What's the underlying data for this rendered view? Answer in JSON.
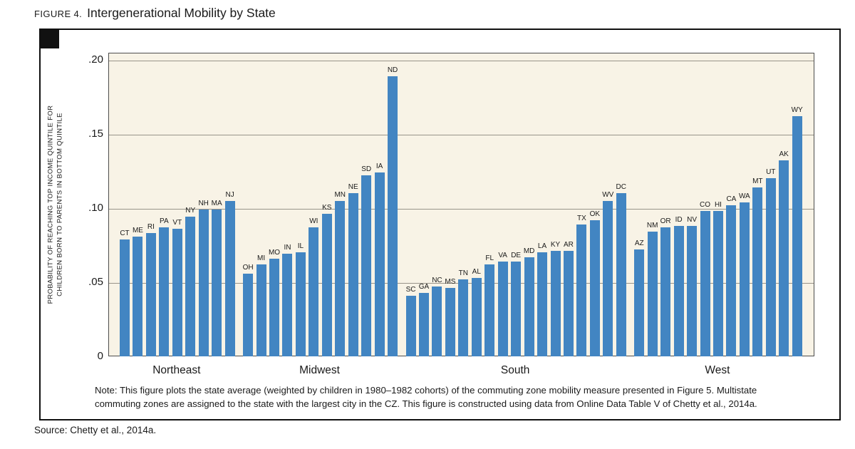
{
  "figure": {
    "label": "FIGURE 4.",
    "title": "Intergenerational Mobility by State"
  },
  "chart_data": {
    "type": "bar",
    "title": "Intergenerational Mobility by State",
    "ylabel_line1": "PROBABILITY OF REACHING TOP INCOME QUINTILE FOR",
    "ylabel_line2": "CHILDREN BORN TO PARENTS IN BOTTOM QUINTILE",
    "ylim": [
      0,
      0.2
    ],
    "grid": true,
    "legend": "none",
    "bar_color": "#4285C2",
    "plot_background": "#f8f3e6",
    "yticks": [
      {
        "label": ".20",
        "value": 0.2
      },
      {
        "label": ".15",
        "value": 0.15
      },
      {
        "label": ".10",
        "value": 0.1
      },
      {
        "label": ".05",
        "value": 0.05
      },
      {
        "label": "0",
        "value": 0
      }
    ],
    "groups": [
      {
        "region": "Northeast",
        "states": [
          "CT",
          "ME",
          "RI",
          "PA",
          "VT",
          "NY",
          "NH",
          "MA",
          "NJ"
        ],
        "values": [
          0.079,
          0.081,
          0.083,
          0.087,
          0.086,
          0.094,
          0.099,
          0.099,
          0.105
        ]
      },
      {
        "region": "Midwest",
        "states": [
          "OH",
          "MI",
          "MO",
          "IN",
          "IL",
          "WI",
          "KS",
          "MN",
          "NE",
          "SD",
          "IA",
          "ND"
        ],
        "values": [
          0.056,
          0.062,
          0.066,
          0.069,
          0.07,
          0.087,
          0.096,
          0.105,
          0.11,
          0.122,
          0.124,
          0.189
        ]
      },
      {
        "region": "South",
        "states": [
          "SC",
          "GA",
          "NC",
          "MS",
          "TN",
          "AL",
          "FL",
          "VA",
          "DE",
          "MD",
          "LA",
          "KY",
          "AR",
          "TX",
          "OK",
          "WV",
          "DC"
        ],
        "values": [
          0.041,
          0.043,
          0.047,
          0.046,
          0.052,
          0.053,
          0.062,
          0.064,
          0.064,
          0.067,
          0.07,
          0.071,
          0.071,
          0.089,
          0.092,
          0.105,
          0.11
        ]
      },
      {
        "region": "West",
        "states": [
          "AZ",
          "NM",
          "OR",
          "ID",
          "NV",
          "CO",
          "HI",
          "CA",
          "WA",
          "MT",
          "UT",
          "AK",
          "WY"
        ],
        "values": [
          0.072,
          0.084,
          0.087,
          0.088,
          0.088,
          0.098,
          0.098,
          0.102,
          0.104,
          0.114,
          0.12,
          0.132,
          0.162
        ]
      }
    ]
  },
  "note": {
    "text": "Note: This figure plots the state average (weighted by children in 1980–1982 cohorts) of the commuting zone mobility measure presented in Figure 5. Multistate commuting zones are assigned to the state with the largest city in the CZ. This figure is constructed using data from Online Data Table V of Chetty et al., 2014a."
  },
  "source": {
    "text": "Source: Chetty et al., 2014a."
  }
}
